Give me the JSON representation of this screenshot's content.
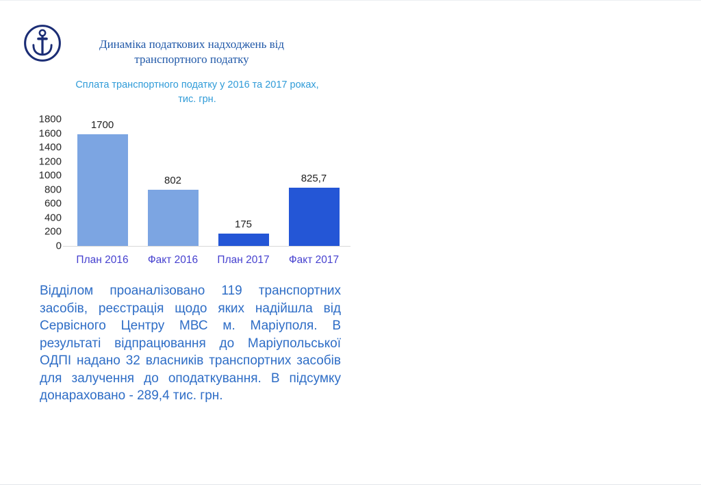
{
  "colors": {
    "background": "#ffffff",
    "logo-color": "#1b2d75",
    "title-color": "#2058a8",
    "chart-title-color": "#2f9bd8",
    "bar-light": "#7ca5e2",
    "bar-dark": "#2456d6",
    "value-label-color": "#1f1f1f",
    "ytick-color": "#262626",
    "xlabel-color": "#4540cf",
    "baseline-color": "#d8d8d8",
    "body-color": "#2e6dc6"
  },
  "slide": {
    "logo_icon": "anchor-icon",
    "title": {
      "line1": "Динаміка податкових надходжень від",
      "line2": "транспортного податку"
    },
    "chart_title": {
      "line1": "Сплата транспортного податку у 2016 та 2017 роках,",
      "line2": "тис. грн."
    },
    "paragraph": "Відділом проаналізовано 119 транспортних засобів, реєстрація щодо яких надійшла від Сервісного Центру МВС м. Маріуполя. В результаті відпрацювання до Маріупольської ОДПІ надано 32 власників транспортних засобів для залучення до оподаткування. В підсумку донараховано - 289,4 тис. грн."
  },
  "chart_data": {
    "type": "bar",
    "title": "Сплата транспортного податку у 2016 та 2017 роках, тис. грн.",
    "categories": [
      "План 2016",
      "Факт 2016",
      "План 2017",
      "Факт 2017"
    ],
    "values": [
      1700,
      802,
      175,
      825.7
    ],
    "value_labels": [
      "1700",
      "802",
      "175",
      "825,7"
    ],
    "bar_colors": [
      "#7ca5e2",
      "#7ca5e2",
      "#2456d6",
      "#2456d6"
    ],
    "xlabel": "",
    "ylabel": "",
    "ylim": [
      0,
      1800
    ],
    "yticks": [
      0,
      200,
      400,
      600,
      800,
      1000,
      1200,
      1400,
      1600,
      1800
    ],
    "grid": false,
    "legend": "none"
  }
}
